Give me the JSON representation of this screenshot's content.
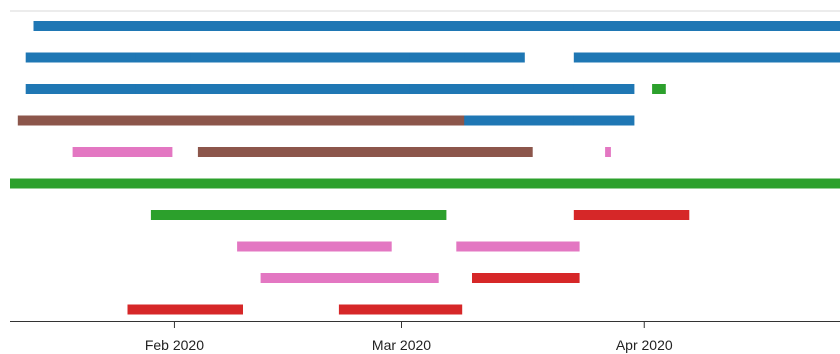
{
  "chart_data": {
    "type": "bar",
    "subtype": "timeline",
    "x_domain": [
      "2020-01-11",
      "2020-04-26"
    ],
    "x_ticks": [
      {
        "date": "2020-02-01",
        "label": "Feb 2020"
      },
      {
        "date": "2020-03-01",
        "label": "Mar 2020"
      },
      {
        "date": "2020-04-01",
        "label": "Apr 2020"
      }
    ],
    "colors": {
      "blue": "#1f77b4",
      "brown": "#8c564b",
      "pink": "#e377c2",
      "green": "#2ca02c",
      "red": "#d62728"
    },
    "rows": [
      {
        "segments": [
          {
            "start": "2020-01-14",
            "end": "2020-04-26",
            "color": "blue"
          }
        ]
      },
      {
        "segments": [
          {
            "start": "2020-01-13",
            "end": "2020-01-20",
            "color": "blue"
          },
          {
            "start": "2020-01-20",
            "end": "2020-01-27",
            "color": "blue"
          },
          {
            "start": "2020-01-27",
            "end": "2020-02-03",
            "color": "blue"
          },
          {
            "start": "2020-02-03",
            "end": "2020-02-10",
            "color": "blue"
          },
          {
            "start": "2020-02-10",
            "end": "2020-02-17",
            "color": "blue"
          },
          {
            "start": "2020-02-17",
            "end": "2020-02-24",
            "color": "blue"
          },
          {
            "start": "2020-02-24",
            "end": "2020-03-02",
            "color": "blue"
          },
          {
            "start": "2020-03-02",
            "end": "2020-03-09",
            "color": "blue"
          },
          {
            "start": "2020-03-09",
            "end": "2020-03-16",
            "color": "blue"
          },
          {
            "start": "2020-03-23",
            "end": "2020-04-26",
            "color": "blue"
          }
        ]
      },
      {
        "segments": [
          {
            "start": "2020-01-13",
            "end": "2020-01-20",
            "color": "blue"
          },
          {
            "start": "2020-01-20",
            "end": "2020-01-27",
            "color": "blue"
          },
          {
            "start": "2020-01-27",
            "end": "2020-02-03",
            "color": "blue"
          },
          {
            "start": "2020-02-03",
            "end": "2020-02-10",
            "color": "blue"
          },
          {
            "start": "2020-02-10",
            "end": "2020-02-17",
            "color": "blue"
          },
          {
            "start": "2020-02-17",
            "end": "2020-02-24",
            "color": "blue"
          },
          {
            "start": "2020-02-24",
            "end": "2020-03-02",
            "color": "blue"
          },
          {
            "start": "2020-03-02",
            "end": "2020-03-09",
            "color": "blue"
          },
          {
            "start": "2020-03-09",
            "end": "2020-03-16",
            "color": "blue"
          },
          {
            "start": "2020-03-16",
            "end": "2020-03-23",
            "color": "blue"
          },
          {
            "start": "2020-03-23",
            "end": "2020-03-30",
            "color": "blue"
          },
          {
            "start": "2020-04-02",
            "end": "2020-04-03",
            "color": "green"
          }
        ]
      },
      {
        "segments": [
          {
            "start": "2020-01-12",
            "end": "2020-01-20",
            "color": "brown"
          },
          {
            "start": "2020-01-20",
            "end": "2020-01-27",
            "color": "brown"
          },
          {
            "start": "2020-01-27",
            "end": "2020-02-10",
            "color": "brown"
          },
          {
            "start": "2020-02-10",
            "end": "2020-02-24",
            "color": "brown"
          },
          {
            "start": "2020-02-24",
            "end": "2020-03-09",
            "color": "brown"
          },
          {
            "start": "2020-03-09",
            "end": "2020-03-16",
            "color": "blue"
          },
          {
            "start": "2020-03-16",
            "end": "2020-03-23",
            "color": "blue"
          },
          {
            "start": "2020-03-23",
            "end": "2020-03-30",
            "color": "blue"
          }
        ]
      },
      {
        "segments": [
          {
            "start": "2020-01-19",
            "end": "2020-01-31",
            "color": "pink"
          },
          {
            "start": "2020-02-04",
            "end": "2020-02-18",
            "color": "brown"
          },
          {
            "start": "2020-02-18",
            "end": "2020-03-03",
            "color": "brown"
          },
          {
            "start": "2020-03-03",
            "end": "2020-03-17",
            "color": "brown"
          },
          {
            "start": "2020-03-27",
            "end": "2020-03-27",
            "color": "pink"
          }
        ]
      },
      {
        "segments": [
          {
            "start": "2020-01-11",
            "end": "2020-04-26",
            "color": "green"
          }
        ]
      },
      {
        "segments": [
          {
            "start": "2020-01-29",
            "end": "2020-03-06",
            "color": "green"
          },
          {
            "start": "2020-03-23",
            "end": "2020-04-06",
            "color": "red"
          }
        ]
      },
      {
        "segments": [
          {
            "start": "2020-02-09",
            "end": "2020-02-28",
            "color": "pink"
          },
          {
            "start": "2020-03-08",
            "end": "2020-03-23",
            "color": "pink"
          }
        ]
      },
      {
        "segments": [
          {
            "start": "2020-02-12",
            "end": "2020-03-05",
            "color": "pink"
          },
          {
            "start": "2020-03-10",
            "end": "2020-03-23",
            "color": "red"
          }
        ]
      },
      {
        "segments": [
          {
            "start": "2020-01-26",
            "end": "2020-02-09",
            "color": "red"
          },
          {
            "start": "2020-02-22",
            "end": "2020-03-08",
            "color": "red"
          }
        ]
      }
    ]
  }
}
